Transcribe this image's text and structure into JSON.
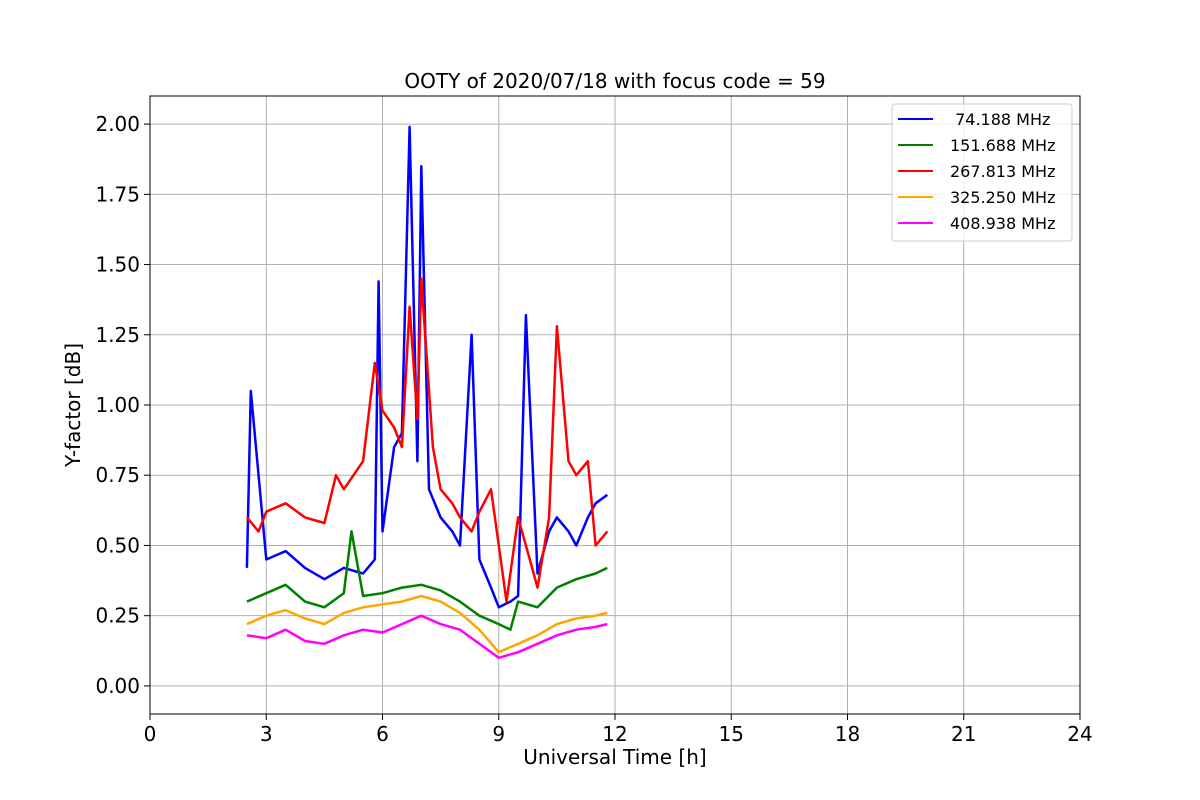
{
  "chart_data": {
    "type": "line",
    "title": "OOTY of 2020/07/18 with focus code = 59",
    "xlabel": "Universal Time [h]",
    "ylabel": "Y-factor [dB]",
    "xlim": [
      0,
      24
    ],
    "ylim": [
      -0.1,
      2.1
    ],
    "xticks": [
      0,
      3,
      6,
      9,
      12,
      15,
      18,
      21,
      24
    ],
    "xtick_labels": [
      "0",
      "3",
      "6",
      "9",
      "12",
      "15",
      "18",
      "21",
      "24"
    ],
    "yticks": [
      0.0,
      0.25,
      0.5,
      0.75,
      1.0,
      1.25,
      1.5,
      1.75,
      2.0
    ],
    "ytick_labels": [
      "0.00",
      "0.25",
      "0.50",
      "0.75",
      "1.00",
      "1.25",
      "1.50",
      "1.75",
      "2.00"
    ],
    "grid": true,
    "legend_position": "top-right",
    "series": [
      {
        "name": " 74.188 MHz",
        "color": "#0000ff",
        "x": [
          2.5,
          2.6,
          3.0,
          3.5,
          4.0,
          4.5,
          5.0,
          5.5,
          5.8,
          5.9,
          6.0,
          6.3,
          6.5,
          6.7,
          6.9,
          7.0,
          7.2,
          7.5,
          7.8,
          8.0,
          8.3,
          8.5,
          8.8,
          9.0,
          9.3,
          9.5,
          9.7,
          10.0,
          10.3,
          10.5,
          10.8,
          11.0,
          11.3,
          11.5,
          11.8
        ],
        "y": [
          0.42,
          1.05,
          0.45,
          0.48,
          0.42,
          0.38,
          0.42,
          0.4,
          0.45,
          1.44,
          0.55,
          0.85,
          0.9,
          1.99,
          0.8,
          1.85,
          0.7,
          0.6,
          0.55,
          0.5,
          1.25,
          0.45,
          0.35,
          0.28,
          0.3,
          0.32,
          1.32,
          0.4,
          0.55,
          0.6,
          0.55,
          0.5,
          0.6,
          0.65,
          0.68
        ]
      },
      {
        "name": "151.688 MHz",
        "color": "#008000",
        "x": [
          2.5,
          3.0,
          3.5,
          4.0,
          4.5,
          5.0,
          5.2,
          5.5,
          6.0,
          6.5,
          7.0,
          7.5,
          8.0,
          8.5,
          9.0,
          9.3,
          9.5,
          10.0,
          10.5,
          11.0,
          11.5,
          11.8
        ],
        "y": [
          0.3,
          0.33,
          0.36,
          0.3,
          0.28,
          0.33,
          0.55,
          0.32,
          0.33,
          0.35,
          0.36,
          0.34,
          0.3,
          0.25,
          0.22,
          0.2,
          0.3,
          0.28,
          0.35,
          0.38,
          0.4,
          0.42
        ]
      },
      {
        "name": "267.813 MHz",
        "color": "#ff0000",
        "x": [
          2.5,
          2.8,
          3.0,
          3.5,
          4.0,
          4.5,
          4.8,
          5.0,
          5.5,
          5.8,
          6.0,
          6.3,
          6.5,
          6.7,
          6.9,
          7.0,
          7.3,
          7.5,
          7.8,
          8.0,
          8.3,
          8.5,
          8.8,
          9.0,
          9.2,
          9.5,
          9.8,
          10.0,
          10.3,
          10.5,
          10.8,
          11.0,
          11.3,
          11.5,
          11.8
        ],
        "y": [
          0.6,
          0.55,
          0.62,
          0.65,
          0.6,
          0.58,
          0.75,
          0.7,
          0.8,
          1.15,
          0.98,
          0.92,
          0.85,
          1.35,
          0.95,
          1.45,
          0.85,
          0.7,
          0.65,
          0.6,
          0.55,
          0.62,
          0.7,
          0.5,
          0.3,
          0.6,
          0.45,
          0.35,
          0.6,
          1.28,
          0.8,
          0.75,
          0.8,
          0.5,
          0.55
        ]
      },
      {
        "name": "325.250 MHz",
        "color": "#ffa500",
        "x": [
          2.5,
          3.0,
          3.5,
          4.0,
          4.5,
          5.0,
          5.5,
          6.0,
          6.5,
          7.0,
          7.5,
          8.0,
          8.5,
          9.0,
          9.5,
          10.0,
          10.5,
          11.0,
          11.5,
          11.8
        ],
        "y": [
          0.22,
          0.25,
          0.27,
          0.24,
          0.22,
          0.26,
          0.28,
          0.29,
          0.3,
          0.32,
          0.3,
          0.26,
          0.2,
          0.12,
          0.15,
          0.18,
          0.22,
          0.24,
          0.25,
          0.26
        ]
      },
      {
        "name": "408.938 MHz",
        "color": "#ff00ff",
        "x": [
          2.5,
          3.0,
          3.5,
          4.0,
          4.5,
          5.0,
          5.5,
          6.0,
          6.5,
          7.0,
          7.5,
          8.0,
          8.5,
          9.0,
          9.5,
          10.0,
          10.5,
          11.0,
          11.5,
          11.8
        ],
        "y": [
          0.18,
          0.17,
          0.2,
          0.16,
          0.15,
          0.18,
          0.2,
          0.19,
          0.22,
          0.25,
          0.22,
          0.2,
          0.15,
          0.1,
          0.12,
          0.15,
          0.18,
          0.2,
          0.21,
          0.22
        ]
      }
    ]
  }
}
